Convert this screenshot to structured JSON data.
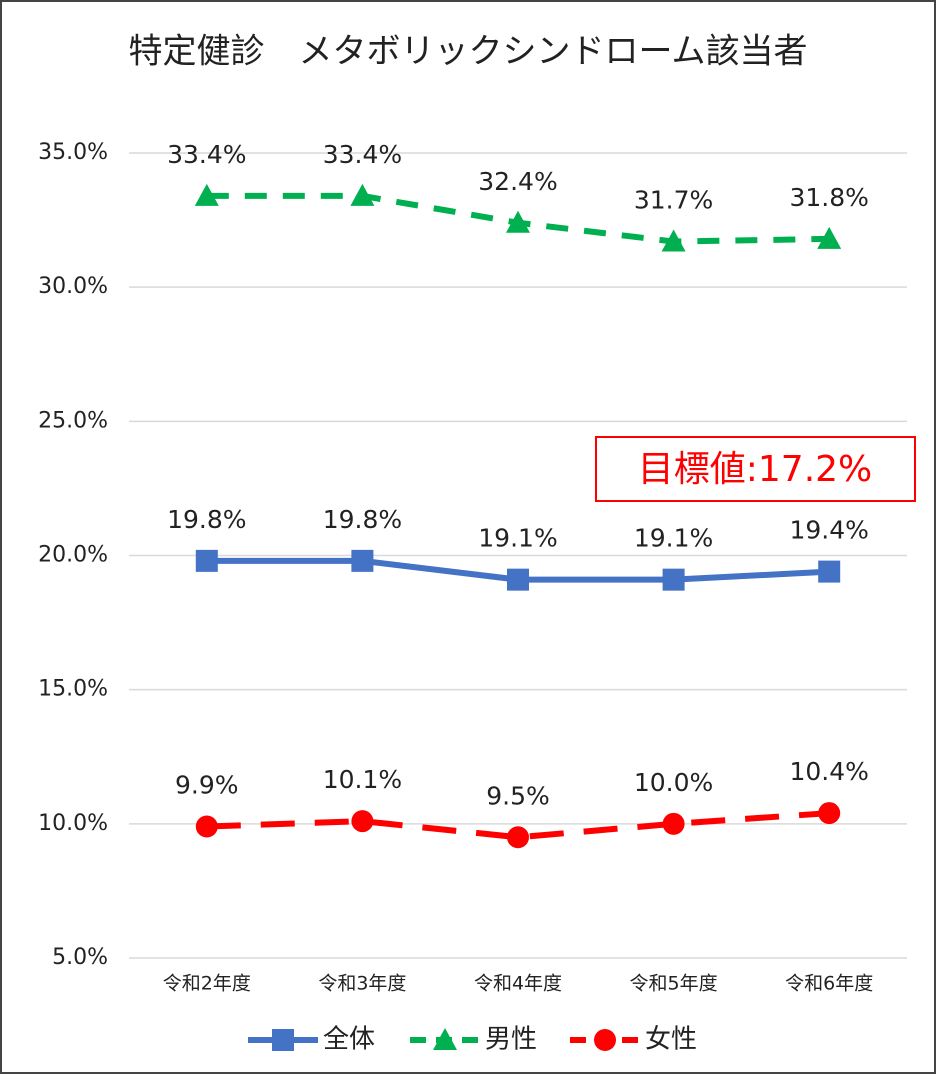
{
  "chart_data": {
    "type": "line",
    "title": "特定健診　メタボリックシンドローム該当者",
    "categories": [
      "令和2年度",
      "令和3年度",
      "令和4年度",
      "令和5年度",
      "令和6年度"
    ],
    "series": [
      {
        "name": "全体",
        "color": "#4472c4",
        "marker": "square",
        "dashed": false,
        "values": [
          19.8,
          19.8,
          19.1,
          19.1,
          19.4
        ],
        "value_labels": [
          "19.8%",
          "19.8%",
          "19.1%",
          "19.1%",
          "19.4%"
        ]
      },
      {
        "name": "男性",
        "color": "#00b050",
        "marker": "triangle",
        "dashed": true,
        "values": [
          33.4,
          33.4,
          32.4,
          31.7,
          31.8
        ],
        "value_labels": [
          "33.4%",
          "33.4%",
          "32.4%",
          "31.7%",
          "31.8%"
        ]
      },
      {
        "name": "女性",
        "color": "#ff0000",
        "marker": "circle",
        "dashed": true,
        "values": [
          9.9,
          10.1,
          9.5,
          10.0,
          10.4
        ],
        "value_labels": [
          "9.9%",
          "10.1%",
          "9.5%",
          "10.0%",
          "10.4%"
        ]
      }
    ],
    "ylim": [
      5,
      35
    ],
    "yticks": [
      {
        "value": 5,
        "label": "5.0%"
      },
      {
        "value": 10,
        "label": "10.0%"
      },
      {
        "value": 15,
        "label": "15.0%"
      },
      {
        "value": 20,
        "label": "20.0%"
      },
      {
        "value": 25,
        "label": "25.0%"
      },
      {
        "value": 30,
        "label": "30.0%"
      },
      {
        "value": 35,
        "label": "35.0%"
      }
    ],
    "grid": true,
    "annotation": "目標値:17.2%",
    "annotation_color": "#ff0000"
  }
}
